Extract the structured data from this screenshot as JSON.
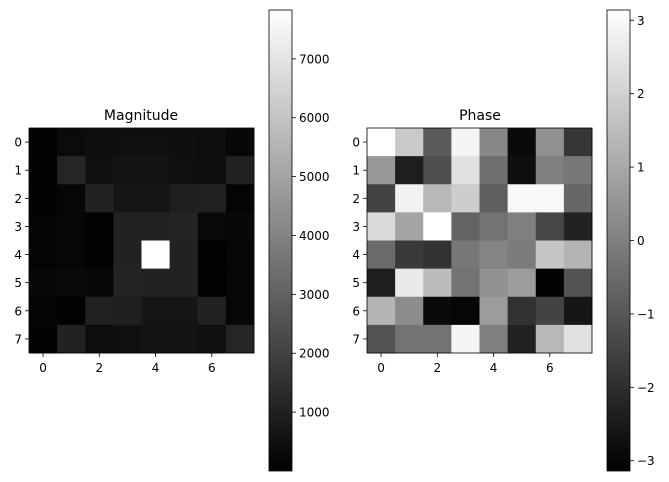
{
  "chart_data": [
    {
      "type": "heatmap",
      "title": "Magnitude",
      "colormap": "gray",
      "rows": [
        [
          60,
          330,
          420,
          480,
          480,
          450,
          420,
          260
        ],
        [
          90,
          1150,
          480,
          600,
          600,
          480,
          420,
          1050
        ],
        [
          60,
          180,
          1050,
          650,
          650,
          950,
          1000,
          120
        ],
        [
          120,
          180,
          60,
          1050,
          1050,
          1100,
          300,
          240
        ],
        [
          120,
          180,
          60,
          1050,
          7830,
          1050,
          60,
          180
        ],
        [
          240,
          300,
          240,
          1100,
          1050,
          1050,
          60,
          180
        ],
        [
          120,
          60,
          1000,
          950,
          650,
          650,
          1050,
          180
        ],
        [
          90,
          1050,
          420,
          480,
          600,
          600,
          480,
          1150
        ]
      ],
      "x_ticks": [
        "0",
        "2",
        "4",
        "6"
      ],
      "y_ticks": [
        "0",
        "1",
        "2",
        "3",
        "4",
        "5",
        "6",
        "7"
      ],
      "colorbar": {
        "min": 0,
        "max": 7830,
        "ticks": [
          "1000",
          "2000",
          "3000",
          "4000",
          "5000",
          "6000",
          "7000"
        ]
      }
    },
    {
      "type": "heatmap",
      "title": "Phase",
      "colormap": "gray",
      "rows": [
        [
          3.14,
          1.8,
          -0.9,
          2.9,
          0.2,
          -2.9,
          0.4,
          -1.8
        ],
        [
          0.6,
          -2.4,
          -1.2,
          2.4,
          -0.4,
          -2.8,
          0.0,
          -0.2
        ],
        [
          -1.5,
          2.8,
          1.4,
          1.9,
          -0.8,
          3.0,
          3.0,
          -0.6
        ],
        [
          2.2,
          0.9,
          3.14,
          -0.7,
          -0.3,
          0.0,
          -1.4,
          -2.3
        ],
        [
          -0.5,
          -1.7,
          -1.9,
          -0.2,
          0.1,
          -0.1,
          1.7,
          1.3
        ],
        [
          -2.4,
          2.6,
          1.5,
          -0.3,
          0.4,
          0.7,
          -3.1,
          -1.1
        ],
        [
          1.3,
          0.3,
          -2.9,
          -3.0,
          0.7,
          -1.9,
          -1.5,
          -2.6
        ],
        [
          -1.1,
          -0.3,
          -0.3,
          2.9,
          0.0,
          -2.3,
          1.4,
          2.4
        ]
      ],
      "x_ticks": [
        "0",
        "2",
        "4",
        "6"
      ],
      "y_ticks": [
        "0",
        "1",
        "2",
        "3",
        "4",
        "5",
        "6",
        "7"
      ],
      "colorbar": {
        "min": -3.14,
        "max": 3.14,
        "ticks": [
          "3",
          "2",
          "1",
          "0",
          "−1",
          "−2",
          "−3"
        ]
      }
    }
  ]
}
